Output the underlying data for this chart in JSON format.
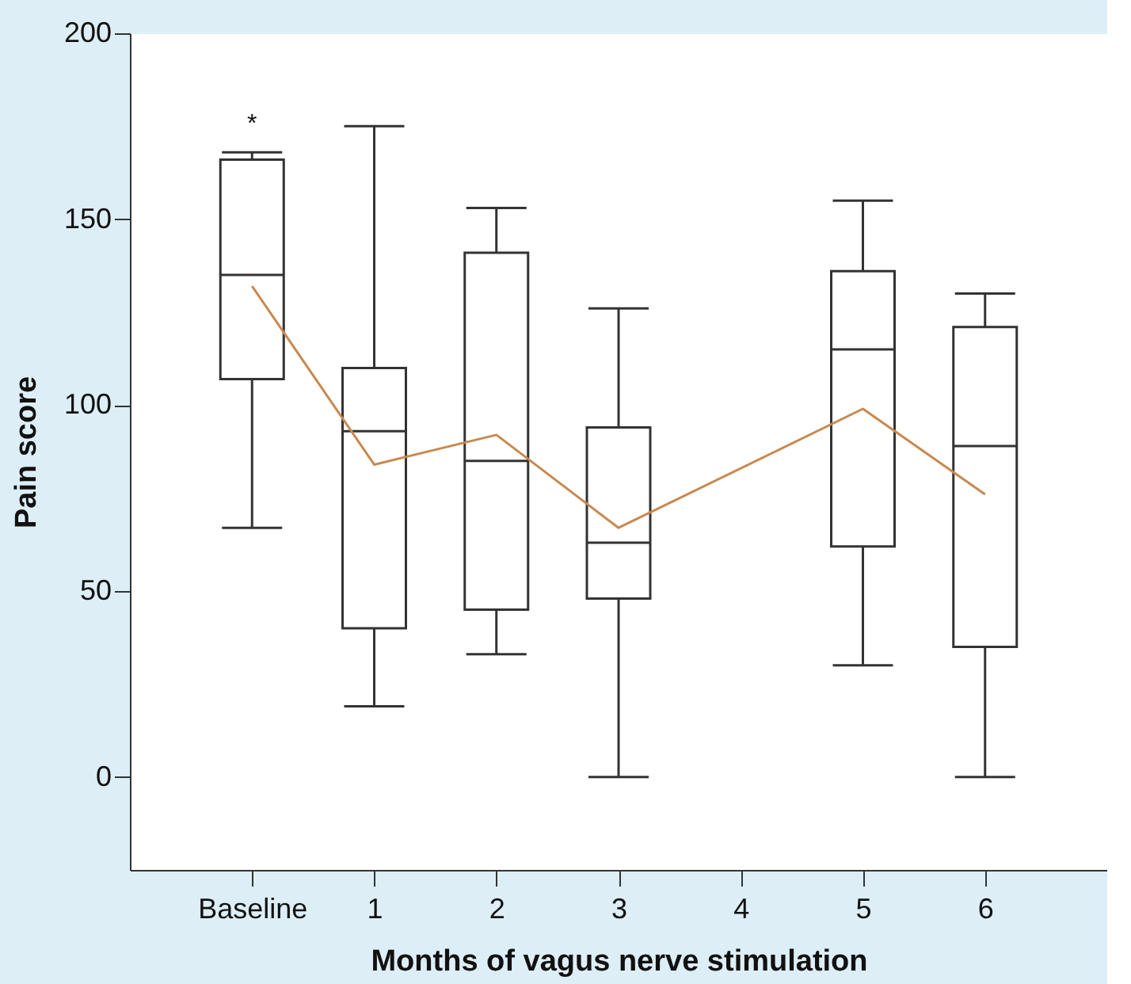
{
  "chart_data": {
    "type": "box",
    "xlabel": "Months of vagus nerve stimulation",
    "ylabel": "Pain score",
    "categories": [
      "Baseline",
      "1",
      "2",
      "3",
      "4",
      "5",
      "6"
    ],
    "boxes": [
      {
        "low": 67,
        "q1": 107,
        "median": 135,
        "q3": 166,
        "high": 168
      },
      {
        "low": 19,
        "q1": 40,
        "median": 93,
        "q3": 110,
        "high": 175
      },
      {
        "low": 33,
        "q1": 45,
        "median": 85,
        "q3": 141,
        "high": 153
      },
      {
        "low": 0,
        "q1": 48,
        "median": 63,
        "q3": 94,
        "high": 126
      },
      null,
      {
        "low": 30,
        "q1": 62,
        "median": 115,
        "q3": 136,
        "high": 155
      },
      {
        "low": 0,
        "q1": 35,
        "median": 89,
        "q3": 121,
        "high": 130
      }
    ],
    "series": [
      {
        "type": "line",
        "color": "#c8894f",
        "x": [
          "Baseline",
          "1",
          "2",
          "3",
          "5",
          "6"
        ],
        "values": [
          132,
          84,
          92,
          67,
          99,
          76
        ]
      }
    ],
    "annotations": [
      "*"
    ],
    "ylim": [
      -25,
      200
    ],
    "yticks": [
      0,
      50,
      100,
      150,
      200
    ],
    "grid": false
  }
}
